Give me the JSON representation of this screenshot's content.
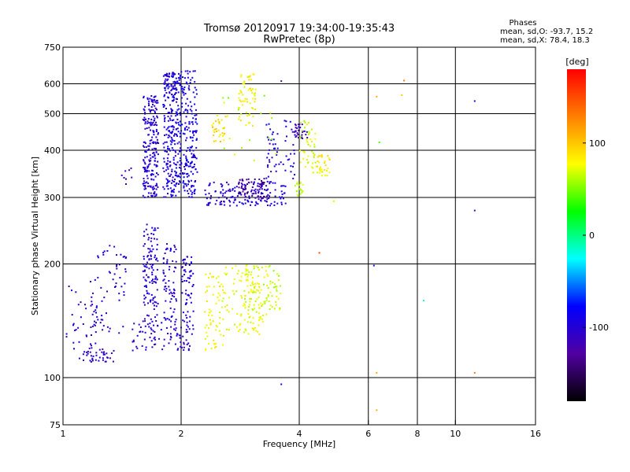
{
  "header": {
    "title_line1": "Tromsø 20120917 19:34:00-19:35:43",
    "title_line2": "RwPretec (8p)",
    "stats_title": "Phases",
    "stats_line1": "mean, sd,O: -93.7, 15.2",
    "stats_line2": "mean, sd,X:  78.4, 18.3"
  },
  "chart_data": {
    "type": "scatter",
    "xlabel": "Frequency [MHz]",
    "ylabel": "Stationary phase Virtual Height [km]",
    "xscale": "log",
    "yscale": "log",
    "xlim": [
      1,
      16
    ],
    "ylim": [
      75,
      750
    ],
    "xticks": [
      1,
      2,
      4,
      6,
      8,
      10,
      16
    ],
    "yticks": [
      75,
      100,
      200,
      300,
      400,
      500,
      600,
      750
    ],
    "xgrid": [
      2,
      4,
      6,
      8,
      10
    ],
    "ygrid": [
      100,
      200,
      300,
      400,
      500,
      600
    ],
    "colorbar": {
      "label": "[deg]",
      "range": [
        -180,
        180
      ],
      "ticks": [
        100,
        0,
        -100
      ],
      "colormap": [
        "#000000",
        "#5000a0",
        "#0000ff",
        "#00ffff",
        "#00ff00",
        "#ffff00",
        "#ff8000",
        "#ff0000"
      ]
    },
    "clusters": [
      {
        "x": [
          1.02,
          1.22
        ],
        "y": [
          112,
          180
        ],
        "phase": -105,
        "n": 40
      },
      {
        "x": [
          1.1,
          1.35
        ],
        "y": [
          110,
          120
        ],
        "phase": -110,
        "n": 40
      },
      {
        "x": [
          1.2,
          1.45
        ],
        "y": [
          130,
          235
        ],
        "phase": -100,
        "n": 60
      },
      {
        "x": [
          1.4,
          1.5
        ],
        "y": [
          320,
          360
        ],
        "phase": -120,
        "n": 8
      },
      {
        "x": [
          1.5,
          2.15
        ],
        "y": [
          118,
          140
        ],
        "phase": -105,
        "n": 90
      },
      {
        "x": [
          1.6,
          1.75
        ],
        "y": [
          140,
          255
        ],
        "phase": -100,
        "n": 120
      },
      {
        "x": [
          1.8,
          1.95
        ],
        "y": [
          140,
          230
        ],
        "phase": -100,
        "n": 70
      },
      {
        "x": [
          2.0,
          2.15
        ],
        "y": [
          140,
          210
        ],
        "phase": -100,
        "n": 60
      },
      {
        "x": [
          1.6,
          1.75
        ],
        "y": [
          300,
          560
        ],
        "phase": -100,
        "n": 220
      },
      {
        "x": [
          1.8,
          1.95
        ],
        "y": [
          300,
          650
        ],
        "phase": -95,
        "n": 240
      },
      {
        "x": [
          1.95,
          2.2
        ],
        "y": [
          300,
          650
        ],
        "phase": -90,
        "n": 240
      },
      {
        "x": [
          2.3,
          3.7
        ],
        "y": [
          285,
          330
        ],
        "phase": -100,
        "n": 160
      },
      {
        "x": [
          2.8,
          3.3
        ],
        "y": [
          300,
          340
        ],
        "phase": -130,
        "n": 60
      },
      {
        "x": [
          2.3,
          2.6
        ],
        "y": [
          118,
          190
        ],
        "phase": 80,
        "n": 70
      },
      {
        "x": [
          2.6,
          3.2
        ],
        "y": [
          130,
          200
        ],
        "phase": 75,
        "n": 80
      },
      {
        "x": [
          2.9,
          3.3
        ],
        "y": [
          140,
          200
        ],
        "phase": 70,
        "n": 70
      },
      {
        "x": [
          3.3,
          3.6
        ],
        "y": [
          150,
          200
        ],
        "phase": 65,
        "n": 40
      },
      {
        "x": [
          2.4,
          2.6
        ],
        "y": [
          420,
          500
        ],
        "phase": 90,
        "n": 30
      },
      {
        "x": [
          2.8,
          3.1
        ],
        "y": [
          460,
          650
        ],
        "phase": 80,
        "n": 60
      },
      {
        "x": [
          3.3,
          3.9
        ],
        "y": [
          330,
          480
        ],
        "phase": -95,
        "n": 60
      },
      {
        "x": [
          3.9,
          4.2
        ],
        "y": [
          430,
          470
        ],
        "phase": -115,
        "n": 30
      },
      {
        "x": [
          4.0,
          4.4
        ],
        "y": [
          360,
          480
        ],
        "phase": 70,
        "n": 40
      },
      {
        "x": [
          4.3,
          4.8
        ],
        "y": [
          340,
          390
        ],
        "phase": 80,
        "n": 40
      },
      {
        "x": [
          3.9,
          4.1
        ],
        "y": [
          300,
          330
        ],
        "phase": 60,
        "n": 20
      },
      {
        "x": [
          2.5,
          3.5
        ],
        "y": [
          370,
          560
        ],
        "phase": 60,
        "n": 20
      }
    ],
    "points": [
      {
        "x": 6.3,
        "y": 555,
        "phase": 110
      },
      {
        "x": 7.4,
        "y": 612,
        "phase": 130
      },
      {
        "x": 7.3,
        "y": 560,
        "phase": 100
      },
      {
        "x": 11.2,
        "y": 540,
        "phase": -100
      },
      {
        "x": 6.3,
        "y": 103,
        "phase": 110
      },
      {
        "x": 6.3,
        "y": 82,
        "phase": 110
      },
      {
        "x": 11.2,
        "y": 103,
        "phase": 130
      },
      {
        "x": 11.2,
        "y": 277,
        "phase": -120
      },
      {
        "x": 4.5,
        "y": 214,
        "phase": 150
      },
      {
        "x": 6.2,
        "y": 198,
        "phase": -100
      },
      {
        "x": 8.3,
        "y": 160,
        "phase": -20
      },
      {
        "x": 3.6,
        "y": 96,
        "phase": -100
      },
      {
        "x": 3.6,
        "y": 610,
        "phase": -130
      },
      {
        "x": 4.9,
        "y": 293,
        "phase": 70
      },
      {
        "x": 6.4,
        "y": 420,
        "phase": 40
      }
    ]
  }
}
